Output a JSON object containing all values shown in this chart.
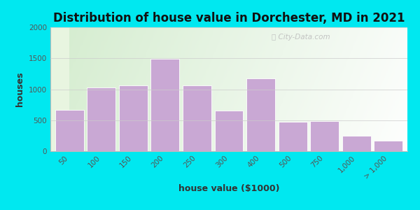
{
  "title": "Distribution of house value in Dorchester, MD in 2021",
  "xlabel": "house value ($1000)",
  "ylabel": "houses",
  "bar_labels": [
    "50",
    "100",
    "150",
    "200",
    "250",
    "300",
    "400",
    "500",
    "750",
    "1,000",
    "> 1,000"
  ],
  "bar_values": [
    670,
    1030,
    1060,
    1490,
    1060,
    650,
    1175,
    470,
    490,
    250,
    170
  ],
  "bar_color": "#c9a8d4",
  "bar_edge_color": "#ffffff",
  "ylim": [
    0,
    2000
  ],
  "yticks": [
    0,
    500,
    1000,
    1500,
    2000
  ],
  "background_outer": "#00e8f0",
  "background_inner_topleft": "#d4edc8",
  "background_inner_bottomright": "#f5f9f0",
  "title_fontsize": 12,
  "axis_label_fontsize": 9,
  "tick_fontsize": 7.5,
  "watermark": "City-Data.com",
  "watermark_icon": "©"
}
